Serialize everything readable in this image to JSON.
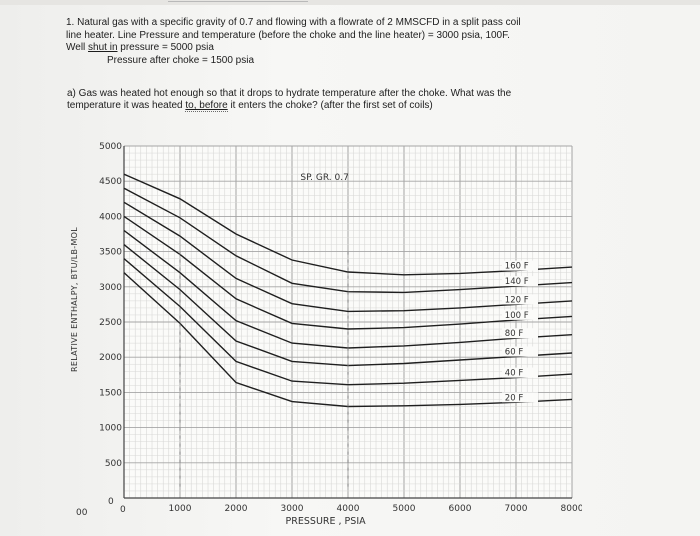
{
  "question": {
    "line1": "1. Natural gas with a specific gravity of 0.7 and flowing with a flowrate of 2 MMSCFD in a split pass coil",
    "line2": "line heater. Line Pressure and temperature (before the choke and the line heater) = 3000 psia, 100F.",
    "line3_prefix": "Well ",
    "line3_underlined": "shut in",
    "line3_suffix": " pressure = 5000 psia",
    "line4": "Pressure after choke = 1500 psia"
  },
  "part_a": {
    "line1": "a) Gas was heated hot enough so that it drops to hydrate temperature after the choke. What was the",
    "line2_prefix": "temperature it was heated ",
    "line2_underlined": "to, before",
    "line2_suffix": " it enters the choke? (after the first set of coils)"
  },
  "chart_data": {
    "type": "line",
    "title": "SP. GR. 0.7",
    "xlabel": "PRESSURE , PSIA",
    "ylabel": "RELATIVE ENTHALPY, BTU/LB-MOL",
    "xlim": [
      0,
      8000
    ],
    "ylim": [
      0,
      5000
    ],
    "x_ticks": [
      "1000",
      "2000",
      "3000",
      "4000",
      "5000",
      "6000",
      "7000",
      "8000"
    ],
    "y_ticks": [
      "500",
      "1000",
      "1500",
      "2000",
      "2500",
      "3000",
      "3500",
      "4000",
      "4500",
      "5000"
    ],
    "origin_labels": [
      "00",
      "0",
      "0"
    ],
    "series": [
      {
        "name": "160 F",
        "points": [
          [
            0,
            4600
          ],
          [
            1000,
            4250
          ],
          [
            2000,
            3750
          ],
          [
            3000,
            3380
          ],
          [
            4000,
            3210
          ],
          [
            5000,
            3170
          ],
          [
            6000,
            3190
          ],
          [
            7000,
            3230
          ],
          [
            8000,
            3280
          ]
        ]
      },
      {
        "name": "140 F",
        "points": [
          [
            0,
            4400
          ],
          [
            1000,
            3980
          ],
          [
            2000,
            3440
          ],
          [
            3000,
            3050
          ],
          [
            4000,
            2930
          ],
          [
            5000,
            2920
          ],
          [
            6000,
            2960
          ],
          [
            7000,
            3010
          ],
          [
            8000,
            3060
          ]
        ]
      },
      {
        "name": "120 F",
        "points": [
          [
            0,
            4200
          ],
          [
            1000,
            3720
          ],
          [
            2000,
            3120
          ],
          [
            3000,
            2760
          ],
          [
            4000,
            2650
          ],
          [
            5000,
            2660
          ],
          [
            6000,
            2700
          ],
          [
            7000,
            2750
          ],
          [
            8000,
            2800
          ]
        ]
      },
      {
        "name": "100 F",
        "points": [
          [
            0,
            4000
          ],
          [
            1000,
            3460
          ],
          [
            2000,
            2830
          ],
          [
            3000,
            2480
          ],
          [
            4000,
            2400
          ],
          [
            5000,
            2420
          ],
          [
            6000,
            2470
          ],
          [
            7000,
            2530
          ],
          [
            8000,
            2580
          ]
        ]
      },
      {
        "name": "80 F",
        "points": [
          [
            0,
            3800
          ],
          [
            1000,
            3200
          ],
          [
            2000,
            2520
          ],
          [
            3000,
            2200
          ],
          [
            4000,
            2130
          ],
          [
            5000,
            2160
          ],
          [
            6000,
            2210
          ],
          [
            7000,
            2270
          ],
          [
            8000,
            2320
          ]
        ]
      },
      {
        "name": "60 F",
        "points": [
          [
            0,
            3600
          ],
          [
            1000,
            2960
          ],
          [
            2000,
            2230
          ],
          [
            3000,
            1940
          ],
          [
            4000,
            1880
          ],
          [
            5000,
            1910
          ],
          [
            6000,
            1960
          ],
          [
            7000,
            2010
          ],
          [
            8000,
            2060
          ]
        ]
      },
      {
        "name": "40 F",
        "points": [
          [
            0,
            3400
          ],
          [
            1000,
            2720
          ],
          [
            2000,
            1940
          ],
          [
            3000,
            1660
          ],
          [
            4000,
            1610
          ],
          [
            5000,
            1630
          ],
          [
            6000,
            1670
          ],
          [
            7000,
            1710
          ],
          [
            8000,
            1760
          ]
        ]
      },
      {
        "name": "20 F",
        "points": [
          [
            0,
            3200
          ],
          [
            1000,
            2480
          ],
          [
            2000,
            1640
          ],
          [
            3000,
            1370
          ],
          [
            4000,
            1300
          ],
          [
            5000,
            1310
          ],
          [
            6000,
            1330
          ],
          [
            7000,
            1360
          ],
          [
            8000,
            1400
          ]
        ]
      }
    ],
    "grid": true
  }
}
